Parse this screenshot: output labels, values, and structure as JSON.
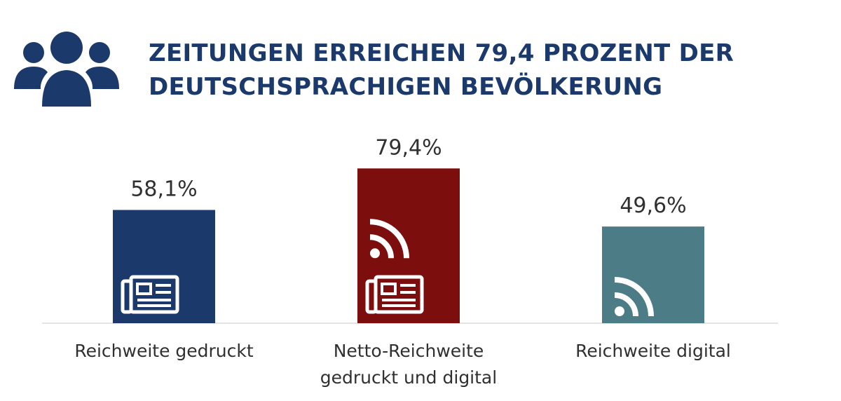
{
  "header": {
    "title_lines": [
      "ZEITUNGEN ERREICHEN 79,4 PROZENT DER",
      "DEUTSCHSPRACHIGEN BEVÖLKERUNG"
    ],
    "icon": "people-group-icon"
  },
  "chart_data": {
    "type": "bar",
    "title": "ZEITUNGEN ERREICHEN 79,4 PROZENT DER DEUTSCHSPRACHIGEN BEVÖLKERUNG",
    "categories": [
      [
        "Reichweite gedruckt"
      ],
      [
        "Netto-Reichweite",
        "gedruckt und digital"
      ],
      [
        "Reichweite digital"
      ]
    ],
    "values": [
      58.1,
      79.4,
      49.6
    ],
    "value_labels": [
      "58,1%",
      "79,4%",
      "49,6%"
    ],
    "bar_icons": [
      [
        "newspaper-icon"
      ],
      [
        "rss-icon",
        "newspaper-icon"
      ],
      [
        "rss-icon"
      ]
    ],
    "colors": [
      "#1b3a6b",
      "#7c0e0e",
      "#4c7d86"
    ],
    "xlabel": "",
    "ylabel": "",
    "ylim": [
      0,
      100
    ],
    "grid": false,
    "legend": "none"
  }
}
